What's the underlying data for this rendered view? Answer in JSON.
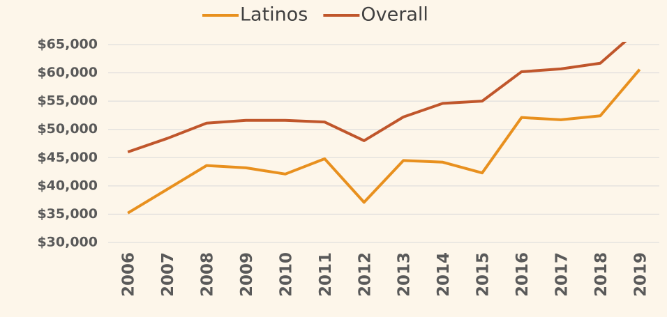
{
  "chart_data": {
    "type": "line",
    "categories": [
      "2006",
      "2007",
      "2008",
      "2009",
      "2010",
      "2011",
      "2012",
      "2013",
      "2014",
      "2015",
      "2016",
      "2017",
      "2018",
      "2019"
    ],
    "series": [
      {
        "name": "Latinos",
        "color": "#e8901e",
        "values": [
          35200,
          39400,
          43600,
          43200,
          42100,
          44800,
          37100,
          44500,
          44200,
          42300,
          52100,
          51700,
          52400,
          60600
        ]
      },
      {
        "name": "Overall",
        "color": "#c0562b",
        "values": [
          46000,
          48400,
          51100,
          51600,
          51600,
          51300,
          48000,
          52200,
          54600,
          55000,
          60200,
          60700,
          61700,
          67800
        ]
      }
    ],
    "ylim": [
      30000,
      65000
    ],
    "yticks": [
      {
        "value": 30000,
        "label": "$30,000"
      },
      {
        "value": 35000,
        "label": "$35,000"
      },
      {
        "value": 40000,
        "label": "$40,000"
      },
      {
        "value": 45000,
        "label": "$45,000"
      },
      {
        "value": 50000,
        "label": "$50,000"
      },
      {
        "value": 55000,
        "label": "$55,000"
      },
      {
        "value": 60000,
        "label": "$60,000"
      },
      {
        "value": 65000,
        "label": "$65,000"
      }
    ],
    "grid": true,
    "legend": "top"
  }
}
